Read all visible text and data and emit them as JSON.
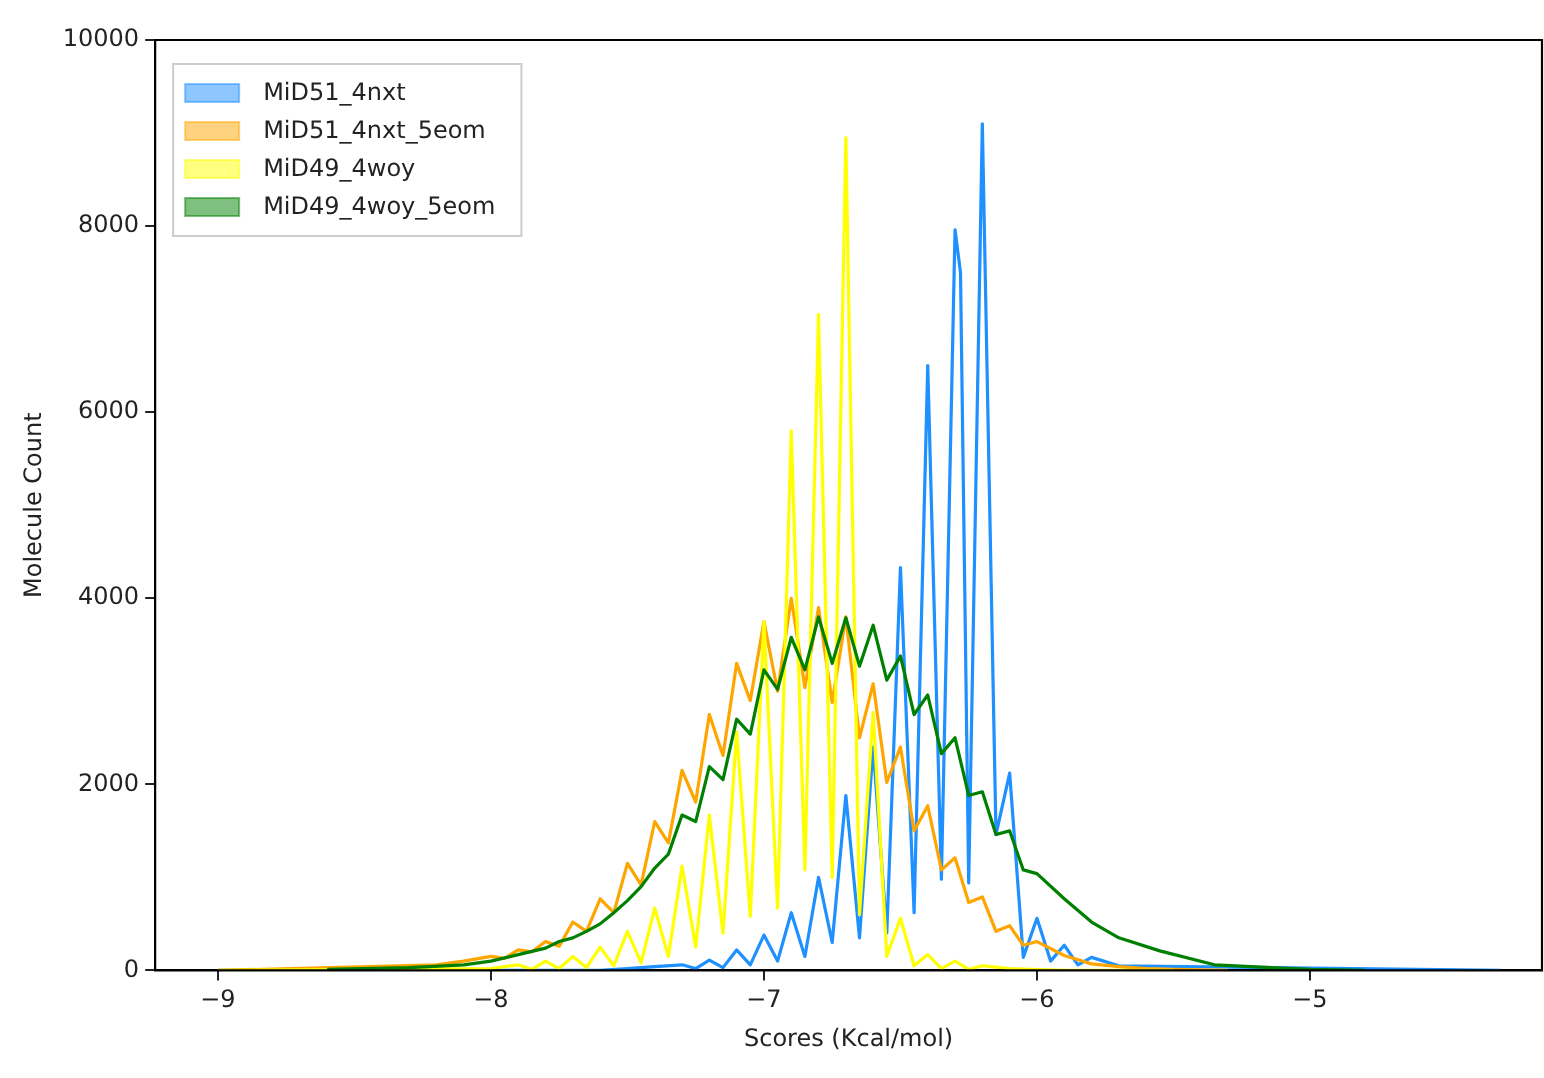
{
  "chart_data": {
    "type": "line",
    "xlabel": "Scores (Kcal/mol)",
    "ylabel": "Molecule Count",
    "xlim": [
      -9.23,
      -4.15
    ],
    "xticks": [
      -9,
      -8,
      -7,
      -6,
      -5
    ],
    "ylim": [
      0,
      10000
    ],
    "yticks": [
      0,
      2000,
      4000,
      6000,
      8000,
      10000
    ],
    "grid": false,
    "legend": "top left",
    "marker": "none",
    "line_style": "solid",
    "series": [
      {
        "name": "MiD51_4nxt",
        "color": "#1e90ff",
        "x": [
          -9,
          -7.6,
          -7.5,
          -7.4,
          -7.3,
          -7.25,
          -7.2,
          -7.15,
          -7.1,
          -7.05,
          -7.0,
          -6.95,
          -6.9,
          -6.85,
          -6.8,
          -6.75,
          -6.7,
          -6.65,
          -6.6,
          -6.55,
          -6.5,
          -6.45,
          -6.4,
          -6.35,
          -6.3,
          -6.28,
          -6.25,
          -6.2,
          -6.15,
          -6.1,
          -6.05,
          -6.0,
          -5.95,
          -5.9,
          -5.85,
          -5.8,
          -5.7,
          -4.3
        ],
        "values": [
          0,
          0,
          20,
          40,
          60,
          20,
          110,
          30,
          220,
          60,
          380,
          100,
          620,
          150,
          1000,
          300,
          1880,
          350,
          2400,
          400,
          4330,
          620,
          6500,
          980,
          7960,
          7500,
          940,
          9100,
          1460,
          2120,
          140,
          560,
          100,
          270,
          60,
          140,
          50,
          0
        ]
      },
      {
        "name": "MiD51_4nxt_5eom",
        "color": "#ffa500",
        "x": [
          -9,
          -8.2,
          -8.1,
          -8.0,
          -7.95,
          -7.9,
          -7.85,
          -7.8,
          -7.75,
          -7.7,
          -7.65,
          -7.6,
          -7.55,
          -7.5,
          -7.45,
          -7.4,
          -7.35,
          -7.3,
          -7.25,
          -7.2,
          -7.15,
          -7.1,
          -7.05,
          -7.0,
          -6.95,
          -6.9,
          -6.85,
          -6.8,
          -6.75,
          -6.7,
          -6.65,
          -6.6,
          -6.55,
          -6.5,
          -6.45,
          -6.4,
          -6.35,
          -6.3,
          -6.25,
          -6.2,
          -6.15,
          -6.1,
          -6.05,
          -6.0,
          -5.9,
          -5.8,
          -5.7,
          -5.6,
          -5.5,
          -5.3
        ],
        "values": [
          0,
          60,
          100,
          150,
          130,
          220,
          200,
          310,
          260,
          520,
          420,
          770,
          620,
          1150,
          920,
          1600,
          1370,
          2150,
          1810,
          2750,
          2310,
          3300,
          2900,
          3750,
          3000,
          4000,
          3040,
          3900,
          2880,
          3800,
          2500,
          3080,
          2020,
          2400,
          1500,
          1770,
          1080,
          1210,
          730,
          790,
          420,
          480,
          270,
          310,
          160,
          70,
          40,
          20,
          10,
          0
        ]
      },
      {
        "name": "MiD49_4woy",
        "color": "#ffff00",
        "x": [
          -9,
          -8.0,
          -7.9,
          -7.85,
          -7.8,
          -7.75,
          -7.7,
          -7.65,
          -7.6,
          -7.55,
          -7.5,
          -7.45,
          -7.4,
          -7.35,
          -7.3,
          -7.25,
          -7.2,
          -7.15,
          -7.1,
          -7.05,
          -7.0,
          -6.95,
          -6.9,
          -6.85,
          -6.8,
          -6.75,
          -6.7,
          -6.65,
          -6.6,
          -6.55,
          -6.5,
          -6.45,
          -6.4,
          -6.35,
          -6.3,
          -6.25,
          -6.2,
          -6.1,
          -5.9,
          -5.5
        ],
        "values": [
          0,
          20,
          60,
          10,
          100,
          20,
          150,
          30,
          250,
          50,
          420,
          80,
          670,
          150,
          1120,
          250,
          1670,
          400,
          2560,
          580,
          3750,
          670,
          5800,
          1080,
          7050,
          1000,
          8950,
          600,
          2770,
          150,
          560,
          50,
          170,
          20,
          100,
          10,
          50,
          20,
          0,
          0
        ]
      },
      {
        "name": "MiD49_4woy_5eom",
        "color": "#008000",
        "x": [
          -8.6,
          -8.3,
          -8.1,
          -8.0,
          -7.9,
          -7.8,
          -7.75,
          -7.7,
          -7.65,
          -7.6,
          -7.55,
          -7.5,
          -7.45,
          -7.4,
          -7.35,
          -7.3,
          -7.25,
          -7.2,
          -7.15,
          -7.1,
          -7.05,
          -7.0,
          -6.95,
          -6.9,
          -6.85,
          -6.8,
          -6.75,
          -6.7,
          -6.65,
          -6.6,
          -6.55,
          -6.5,
          -6.45,
          -6.4,
          -6.35,
          -6.3,
          -6.25,
          -6.2,
          -6.15,
          -6.1,
          -6.05,
          -6.0,
          -5.9,
          -5.8,
          -5.7,
          -5.55,
          -5.35,
          -5.0,
          -4.8
        ],
        "values": [
          10,
          30,
          60,
          100,
          170,
          240,
          310,
          350,
          420,
          500,
          620,
          750,
          900,
          1100,
          1250,
          1670,
          1600,
          2190,
          2050,
          2700,
          2540,
          3230,
          3020,
          3580,
          3230,
          3800,
          3300,
          3790,
          3270,
          3710,
          3120,
          3380,
          2750,
          2960,
          2330,
          2500,
          1880,
          1920,
          1460,
          1500,
          1080,
          1040,
          770,
          520,
          350,
          210,
          60,
          10,
          0
        ]
      }
    ]
  }
}
